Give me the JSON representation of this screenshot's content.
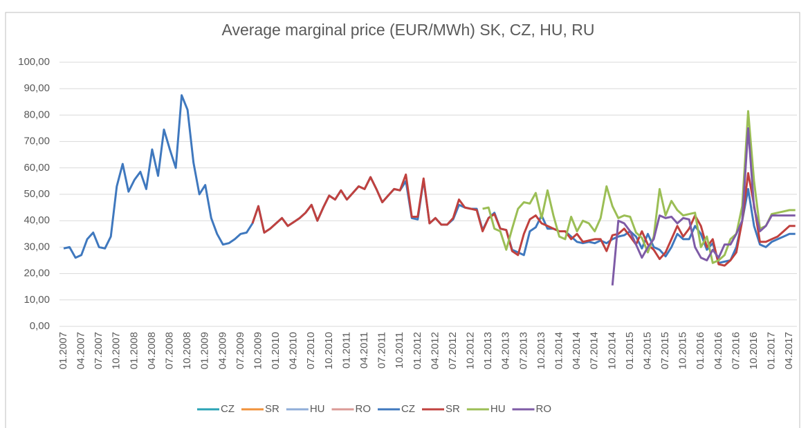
{
  "chart_data": {
    "type": "line",
    "title": "Average marginal price (EUR/MWh) SK, CZ, HU, RU",
    "categories": [
      "01.2007",
      null,
      null,
      "04.2007",
      null,
      null,
      "07.2007",
      null,
      null,
      "10.2007",
      null,
      null,
      "01.2008",
      null,
      null,
      "04.2008",
      null,
      null,
      "07.2008",
      null,
      null,
      "10.2008",
      null,
      null,
      "01.2009",
      null,
      null,
      "04.2009",
      null,
      null,
      "07.2009",
      null,
      null,
      "10.2009",
      null,
      null,
      "01.2010",
      null,
      null,
      "04.2010",
      null,
      null,
      "07.2010",
      null,
      null,
      "10.2010",
      null,
      null,
      "01.2011",
      null,
      null,
      "04.2011",
      null,
      null,
      "07.2011",
      null,
      null,
      "10.2011",
      null,
      null,
      "01.2012",
      null,
      null,
      "04.2012",
      null,
      null,
      "07.2012",
      null,
      null,
      "10.2012",
      null,
      null,
      "01.2013",
      null,
      null,
      "04.2013",
      null,
      null,
      "07.2013",
      null,
      null,
      "10.2013",
      null,
      null,
      "01.2014",
      null,
      null,
      "04.2014",
      null,
      null,
      "07.2014",
      null,
      null,
      "10.2014",
      null,
      null,
      "01.2015",
      null,
      null,
      "04.2015",
      null,
      null,
      "07.2015",
      null,
      null,
      "10.2015",
      null,
      null,
      "01.2016",
      null,
      null,
      "04.2016",
      null,
      null,
      "07.2016",
      null,
      null,
      "10.2016",
      null,
      null,
      "01.2017",
      null,
      null,
      "04.2017",
      null
    ],
    "ylim": [
      0,
      100
    ],
    "yticks": [
      {
        "value": 0,
        "label": "0,00"
      },
      {
        "value": 10,
        "label": "10,00"
      },
      {
        "value": 20,
        "label": "20,00"
      },
      {
        "value": 30,
        "label": "30,00"
      },
      {
        "value": 40,
        "label": "40,00"
      },
      {
        "value": 50,
        "label": "50,00"
      },
      {
        "value": 60,
        "label": "60,00"
      },
      {
        "value": 70,
        "label": "70,00"
      },
      {
        "value": 80,
        "label": "80,00"
      },
      {
        "value": 90,
        "label": "90,00"
      },
      {
        "value": 100,
        "label": "100,00"
      }
    ],
    "grid": true,
    "legend": "bottom",
    "series": [
      {
        "name": "CZ",
        "color": "#2aa3b5",
        "values": [
          null,
          null,
          null,
          null,
          null,
          null,
          null,
          null,
          null,
          null,
          null,
          null,
          null,
          null,
          null,
          null,
          null,
          null,
          null,
          null,
          null,
          null,
          null,
          null,
          null,
          null,
          null,
          null,
          null,
          null,
          null,
          null,
          null,
          null,
          null,
          null,
          null,
          null,
          null,
          null,
          null,
          null,
          null,
          null,
          null,
          null,
          null,
          null,
          null,
          null,
          null,
          null,
          null,
          null,
          null,
          null,
          null,
          null,
          null,
          null,
          null,
          null,
          null,
          null,
          null,
          null,
          null,
          null,
          null,
          null,
          null,
          null,
          null,
          null,
          null,
          null,
          null,
          null,
          null,
          null,
          null,
          null,
          null,
          null,
          null,
          null,
          null,
          null,
          null,
          null,
          null,
          null,
          null,
          null,
          null,
          null,
          null,
          null,
          null,
          null,
          null,
          null,
          null,
          null,
          null,
          null,
          null,
          null,
          null,
          null,
          null,
          null,
          null,
          null,
          null,
          null,
          null,
          null,
          null,
          null,
          null,
          null,
          null,
          null,
          null
        ]
      },
      {
        "name": "SR",
        "color": "#f0913a",
        "values": [
          null,
          null,
          null,
          null,
          null,
          null,
          null,
          null,
          null,
          null,
          null,
          null,
          null,
          null,
          null,
          null,
          null,
          null,
          null,
          null,
          null,
          null,
          null,
          null,
          null,
          null,
          null,
          null,
          null,
          null,
          null,
          null,
          null,
          null,
          null,
          null,
          null,
          null,
          null,
          null,
          null,
          null,
          null,
          null,
          null,
          null,
          null,
          null,
          null,
          null,
          null,
          null,
          null,
          null,
          null,
          null,
          null,
          null,
          null,
          null,
          null,
          null,
          null,
          null,
          null,
          null,
          null,
          null,
          null,
          null,
          null,
          null,
          null,
          null,
          null,
          null,
          null,
          null,
          null,
          null,
          null,
          null,
          null,
          null,
          null,
          null,
          null,
          null,
          null,
          null,
          null,
          null,
          null,
          null,
          null,
          null,
          null,
          null,
          null,
          null,
          null,
          null,
          null,
          null,
          null,
          null,
          null,
          null,
          null,
          null,
          null,
          null,
          null,
          null,
          null,
          null,
          null,
          null,
          null,
          null,
          null,
          null,
          null,
          null,
          null
        ]
      },
      {
        "name": "HU",
        "color": "#8fadd8",
        "values": [
          null,
          null,
          null,
          null,
          null,
          null,
          null,
          null,
          null,
          null,
          null,
          null,
          null,
          null,
          null,
          null,
          null,
          null,
          null,
          null,
          null,
          null,
          null,
          null,
          null,
          null,
          null,
          null,
          null,
          null,
          null,
          null,
          null,
          null,
          null,
          null,
          null,
          null,
          null,
          null,
          null,
          null,
          null,
          null,
          null,
          null,
          null,
          null,
          null,
          null,
          null,
          null,
          null,
          null,
          null,
          null,
          null,
          null,
          null,
          null,
          null,
          null,
          null,
          null,
          null,
          null,
          null,
          null,
          null,
          null,
          null,
          null,
          null,
          null,
          null,
          null,
          null,
          null,
          null,
          null,
          null,
          null,
          null,
          null,
          null,
          null,
          null,
          null,
          null,
          null,
          null,
          null,
          null,
          null,
          null,
          null,
          null,
          null,
          null,
          null,
          null,
          null,
          null,
          null,
          null,
          null,
          null,
          null,
          null,
          null,
          null,
          null,
          null,
          null,
          null,
          null,
          null,
          null,
          null,
          null,
          null,
          null,
          null,
          null,
          null
        ]
      },
      {
        "name": "RO",
        "color": "#db9a96",
        "values": [
          null,
          null,
          null,
          null,
          null,
          null,
          null,
          null,
          null,
          null,
          null,
          null,
          null,
          null,
          null,
          null,
          null,
          null,
          null,
          null,
          null,
          null,
          null,
          null,
          null,
          null,
          null,
          null,
          null,
          null,
          null,
          null,
          null,
          null,
          null,
          null,
          null,
          null,
          null,
          null,
          null,
          null,
          null,
          null,
          null,
          null,
          null,
          null,
          null,
          null,
          null,
          null,
          null,
          null,
          null,
          null,
          null,
          null,
          null,
          null,
          null,
          null,
          null,
          null,
          null,
          null,
          null,
          null,
          null,
          null,
          null,
          null,
          null,
          null,
          null,
          null,
          null,
          null,
          null,
          null,
          null,
          null,
          null,
          null,
          null,
          null,
          null,
          null,
          null,
          null,
          null,
          null,
          null,
          null,
          null,
          null,
          null,
          null,
          null,
          null,
          null,
          null,
          null,
          null,
          null,
          null,
          null,
          null,
          null,
          null,
          null,
          null,
          null,
          null,
          null,
          null,
          null,
          null,
          null,
          null,
          null,
          null,
          null,
          null,
          null
        ]
      },
      {
        "name": "CZ",
        "color": "#3f78be",
        "values": [
          29.5,
          30,
          26,
          27,
          33,
          35.5,
          30,
          29.5,
          34,
          53,
          61.5,
          51,
          55.5,
          58.5,
          52,
          67,
          57,
          74.5,
          67,
          60,
          87.5,
          82,
          62,
          50,
          53.5,
          41,
          35,
          31,
          31.5,
          33,
          35,
          35.5,
          39,
          45.5,
          35.5,
          37,
          39,
          41,
          38,
          39.5,
          41,
          43,
          46,
          40,
          45,
          49.5,
          48,
          51.5,
          48,
          50.5,
          53,
          52,
          56.5,
          52,
          47,
          49.5,
          52,
          51.5,
          55,
          41,
          40.5,
          55.5,
          39,
          41,
          38.5,
          38.5,
          40.5,
          46,
          45,
          44.5,
          44.5,
          36.5,
          41,
          43,
          37,
          36.5,
          29,
          28,
          27,
          36,
          37.5,
          42,
          37,
          37,
          36,
          36,
          34,
          32,
          31.5,
          32,
          31.5,
          32.5,
          31.5,
          33,
          34,
          34.5,
          36,
          34,
          29.5,
          35,
          30,
          29,
          26.5,
          30,
          35,
          33,
          33,
          38,
          35,
          29,
          31.5,
          24,
          24.5,
          25,
          30,
          40,
          52,
          38,
          31,
          30,
          32,
          33,
          34,
          35,
          35
        ]
      },
      {
        "name": "SR",
        "color": "#c0413e",
        "values": [
          null,
          null,
          null,
          null,
          null,
          null,
          null,
          null,
          null,
          null,
          null,
          null,
          null,
          null,
          null,
          null,
          null,
          null,
          null,
          null,
          null,
          null,
          null,
          null,
          null,
          null,
          null,
          null,
          null,
          null,
          null,
          null,
          39,
          45.5,
          35.5,
          37,
          39,
          41,
          38,
          39.5,
          41,
          43,
          46,
          40,
          45,
          49.5,
          48,
          51.5,
          48,
          50.5,
          53,
          52,
          56.5,
          52,
          47,
          49.5,
          52,
          51.5,
          57.5,
          41.5,
          41.5,
          56,
          39,
          41,
          38.5,
          38.5,
          41,
          48,
          45,
          44.5,
          44,
          36,
          41,
          42.5,
          37,
          36.5,
          28.5,
          27,
          35,
          40.5,
          42,
          39,
          38,
          37,
          36,
          36,
          33,
          35,
          32,
          32.5,
          33,
          33,
          28.5,
          34.5,
          35,
          37,
          34,
          31,
          36,
          31,
          29,
          25.5,
          28,
          33,
          38,
          34,
          37,
          42,
          38,
          30,
          33,
          23.5,
          23,
          25,
          28,
          40,
          58,
          46,
          32,
          32,
          33,
          34,
          36,
          38,
          38
        ]
      },
      {
        "name": "HU",
        "color": "#9bbe55",
        "values": [
          null,
          null,
          null,
          null,
          null,
          null,
          null,
          null,
          null,
          null,
          null,
          null,
          null,
          null,
          null,
          null,
          null,
          null,
          null,
          null,
          null,
          null,
          null,
          null,
          null,
          null,
          null,
          null,
          null,
          null,
          null,
          null,
          null,
          null,
          null,
          null,
          null,
          null,
          null,
          null,
          null,
          null,
          null,
          null,
          null,
          null,
          null,
          null,
          null,
          null,
          null,
          null,
          null,
          null,
          null,
          null,
          null,
          null,
          null,
          null,
          null,
          null,
          null,
          null,
          null,
          null,
          null,
          null,
          null,
          null,
          null,
          44.5,
          45,
          37,
          36,
          29,
          37,
          44.5,
          47,
          46.5,
          50.5,
          41,
          51.5,
          42,
          34,
          33,
          41.5,
          36,
          40,
          39,
          36,
          41,
          53,
          45.5,
          41,
          42,
          41.5,
          35.5,
          33.5,
          28,
          34,
          52,
          42,
          47.5,
          44,
          42,
          42.5,
          43,
          30,
          34,
          24,
          25,
          27,
          33,
          35,
          45.5,
          81.5,
          55,
          37,
          38,
          42.5,
          43,
          43.5,
          44,
          44
        ]
      },
      {
        "name": "RO",
        "color": "#7e5ba6",
        "values": [
          null,
          null,
          null,
          null,
          null,
          null,
          null,
          null,
          null,
          null,
          null,
          null,
          null,
          null,
          null,
          null,
          null,
          null,
          null,
          null,
          null,
          null,
          null,
          null,
          null,
          null,
          null,
          null,
          null,
          null,
          null,
          null,
          null,
          null,
          null,
          null,
          null,
          null,
          null,
          null,
          null,
          null,
          null,
          null,
          null,
          null,
          null,
          null,
          null,
          null,
          null,
          null,
          null,
          null,
          null,
          null,
          null,
          null,
          null,
          null,
          null,
          null,
          null,
          null,
          null,
          null,
          null,
          null,
          null,
          null,
          null,
          null,
          null,
          null,
          null,
          null,
          null,
          null,
          null,
          null,
          null,
          null,
          null,
          null,
          null,
          null,
          null,
          null,
          null,
          null,
          null,
          null,
          null,
          15.5,
          40,
          39,
          36,
          31,
          26,
          30,
          33,
          42,
          41,
          41.5,
          39,
          41,
          40.5,
          30,
          26,
          25,
          29,
          26,
          31,
          31,
          35,
          40,
          75,
          45,
          36,
          38,
          42,
          42,
          42,
          42,
          42
        ]
      }
    ]
  }
}
